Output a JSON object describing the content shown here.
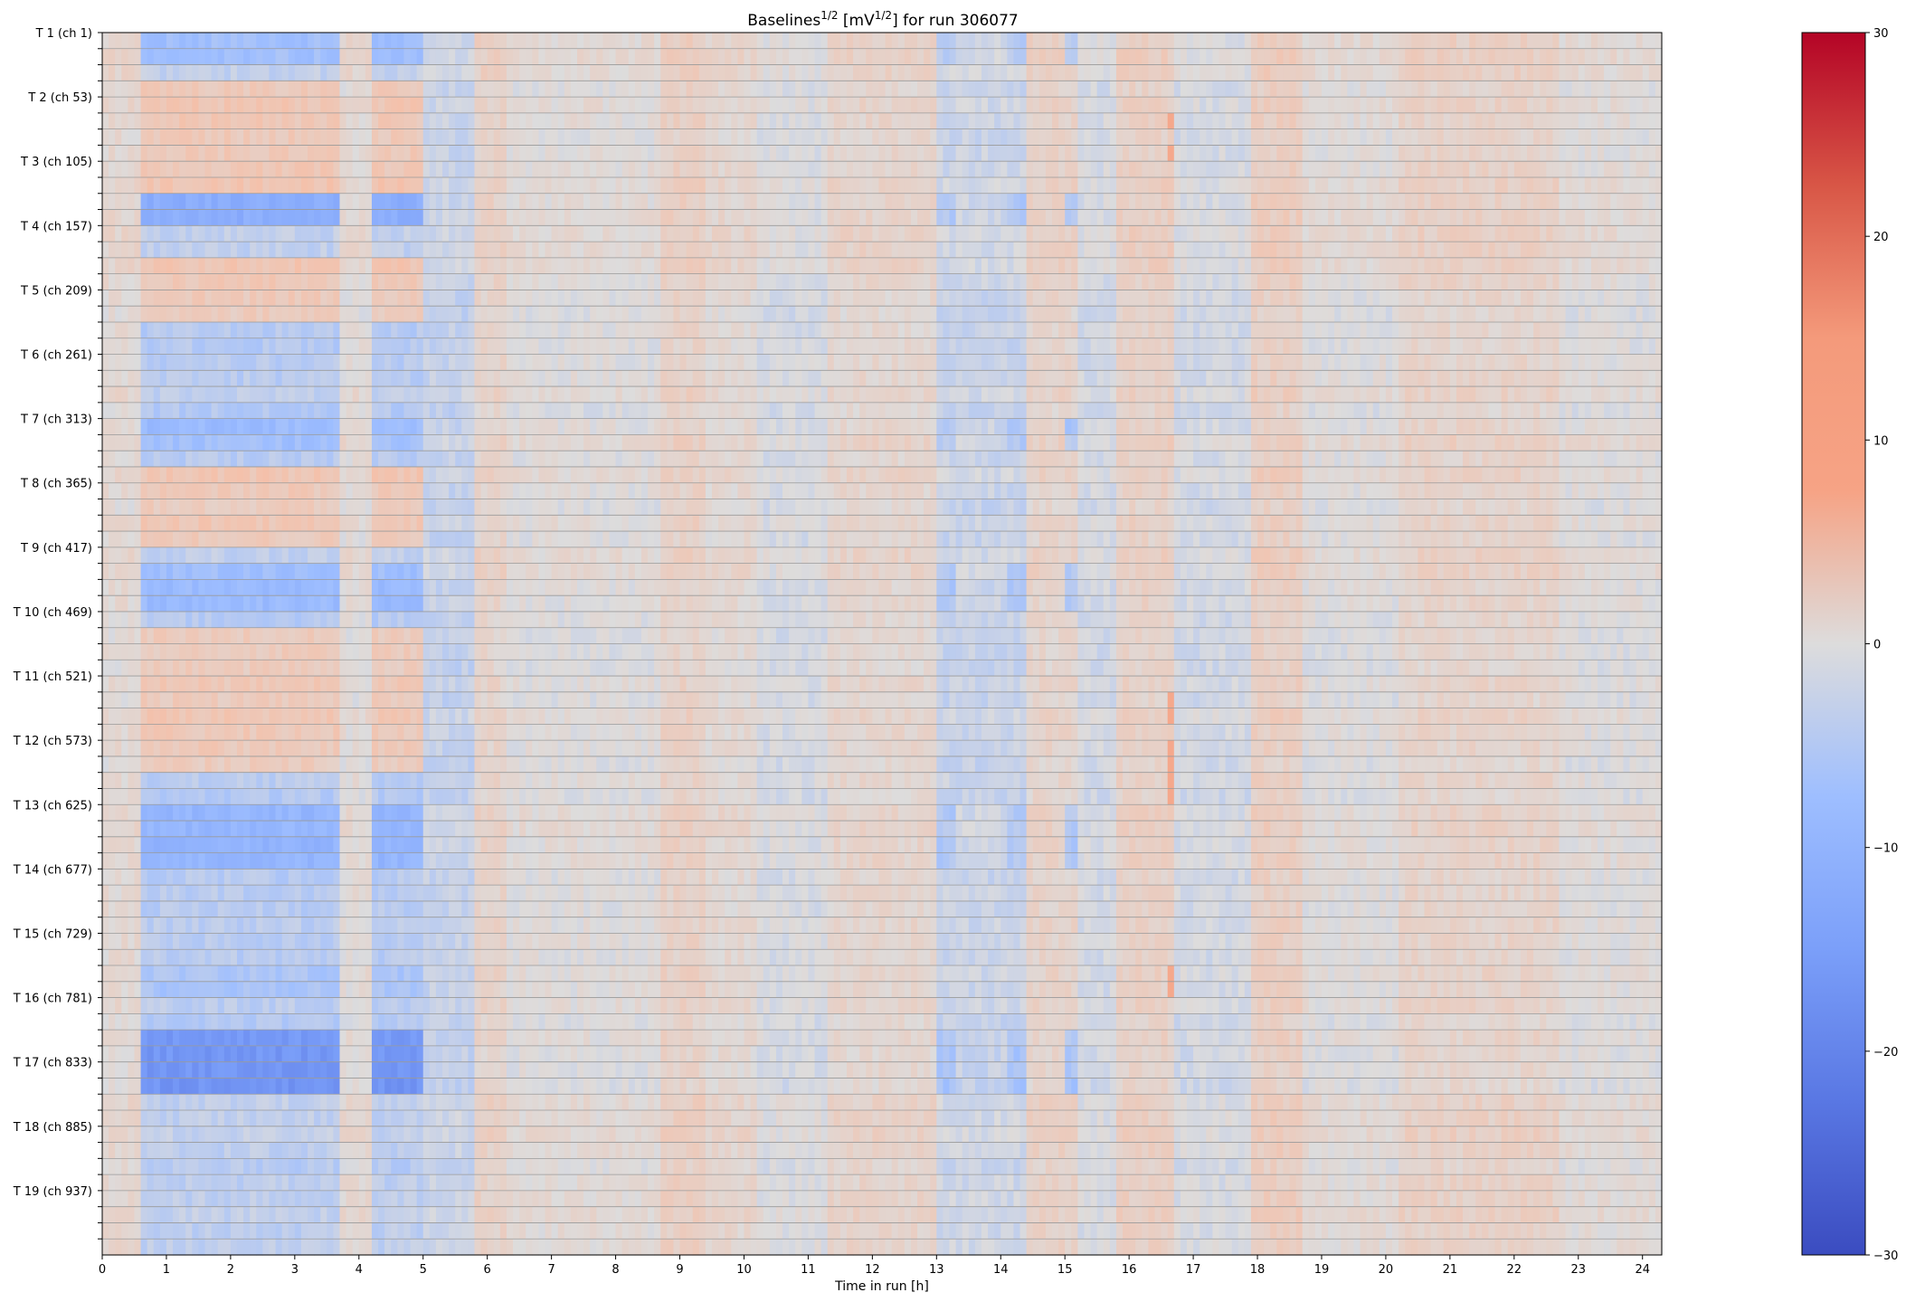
{
  "chart_data": [
    {
      "type": "heatmap",
      "title": {
        "prefix": "Baselines",
        "prefix_sup": "1/2",
        "middle": " [mV",
        "middle_sup": "1/2",
        "suffix": "] for run 306077"
      },
      "xlabel": "Time in run [h]",
      "ylabel": "",
      "xlim": [
        0,
        24.3
      ],
      "x_ticks": [
        0,
        1,
        2,
        3,
        4,
        5,
        6,
        7,
        8,
        9,
        10,
        11,
        12,
        13,
        14,
        15,
        16,
        17,
        18,
        19,
        20,
        21,
        22,
        23,
        24
      ],
      "x_tick_labels": [
        "0",
        "1",
        "2",
        "3",
        "4",
        "5",
        "6",
        "7",
        "8",
        "9",
        "10",
        "11",
        "12",
        "13",
        "14",
        "15",
        "16",
        "17",
        "18",
        "19",
        "20",
        "21",
        "22",
        "23",
        "24"
      ],
      "y_labels": [
        "T 1 (ch 1)",
        "T 2 (ch 53)",
        "T 3 (ch 105)",
        "T 4 (ch 157)",
        "T 5 (ch 209)",
        "T 6 (ch 261)",
        "T 7 (ch 313)",
        "T 8 (ch 365)",
        "T 9 (ch 417)",
        "T 10 (ch 469)",
        "T 11 (ch 521)",
        "T 12 (ch 573)",
        "T 13 (ch 625)",
        "T 14 (ch 677)",
        "T 15 (ch 729)",
        "T 16 (ch 781)",
        "T 17 (ch 833)",
        "T 18 (ch 885)",
        "T 19 (ch 937)"
      ],
      "rows": 76,
      "rows_per_label": 4,
      "time_bins": 243,
      "colormap": "coolwarm",
      "color_range": [
        -30,
        30
      ],
      "features": {
        "time_columns": [
          {
            "t0": 0.0,
            "t1": 0.65,
            "value": 1.5
          },
          {
            "t0": 0.65,
            "t1": 3.75,
            "value": -4.0
          },
          {
            "t0": 3.75,
            "t1": 4.2,
            "value": 1.0
          },
          {
            "t0": 4.2,
            "t1": 5.0,
            "value": -4.0
          },
          {
            "t0": 5.0,
            "t1": 5.8,
            "value": -2.5
          },
          {
            "t0": 5.8,
            "t1": 6.3,
            "value": 2.5
          },
          {
            "t0": 6.3,
            "t1": 8.7,
            "value": 0.5
          },
          {
            "t0": 8.7,
            "t1": 9.4,
            "value": 3.0
          },
          {
            "t0": 9.4,
            "t1": 10.2,
            "value": 1.5
          },
          {
            "t0": 10.2,
            "t1": 11.3,
            "value": -0.5
          },
          {
            "t0": 11.3,
            "t1": 13.0,
            "value": 2.0
          },
          {
            "t0": 13.0,
            "t1": 14.4,
            "value": -2.0
          },
          {
            "t0": 14.4,
            "t1": 15.2,
            "value": 2.5
          },
          {
            "t0": 15.2,
            "t1": 15.8,
            "value": -1.0
          },
          {
            "t0": 15.8,
            "t1": 16.7,
            "value": 3.0
          },
          {
            "t0": 16.7,
            "t1": 17.9,
            "value": -1.0
          },
          {
            "t0": 17.9,
            "t1": 18.7,
            "value": 3.5
          },
          {
            "t0": 18.7,
            "t1": 20.2,
            "value": 0.5
          },
          {
            "t0": 20.2,
            "t1": 22.7,
            "value": 2.5
          },
          {
            "t0": 22.7,
            "t1": 24.3,
            "value": 0.5
          }
        ],
        "strong_rows": [
          {
            "r0": 0,
            "r1": 2,
            "strength": 2.0
          },
          {
            "r0": 10,
            "r1": 12,
            "strength": 3.0
          },
          {
            "r0": 24,
            "r1": 26,
            "strength": 2.0
          },
          {
            "r0": 33,
            "r1": 36,
            "strength": 2.0
          },
          {
            "r0": 48,
            "r1": 52,
            "strength": 2.5
          },
          {
            "r0": 58,
            "r1": 60,
            "strength": 1.5
          },
          {
            "r0": 62,
            "r1": 66,
            "strength": 4.0
          }
        ],
        "warm_rows": [
          {
            "r0": 3,
            "r1": 10,
            "strength": 1.0
          },
          {
            "r0": 14,
            "r1": 18,
            "strength": 1.0
          },
          {
            "r0": 27,
            "r1": 32,
            "strength": 1.0
          },
          {
            "r0": 37,
            "r1": 46,
            "strength": 1.0
          }
        ],
        "hotspot": {
          "t": 16.65,
          "rows": [
            41,
            42,
            44,
            45,
            46,
            47,
            58,
            59,
            5,
            7
          ],
          "value": 12
        }
      }
    },
    {
      "type": "colorbar",
      "ticks": [
        30,
        20,
        10,
        0,
        -10,
        -20,
        -30
      ],
      "tick_labels": [
        "30",
        "20",
        "10",
        "0",
        "−10",
        "−20",
        "−30"
      ],
      "range": [
        -30,
        30
      ]
    }
  ]
}
